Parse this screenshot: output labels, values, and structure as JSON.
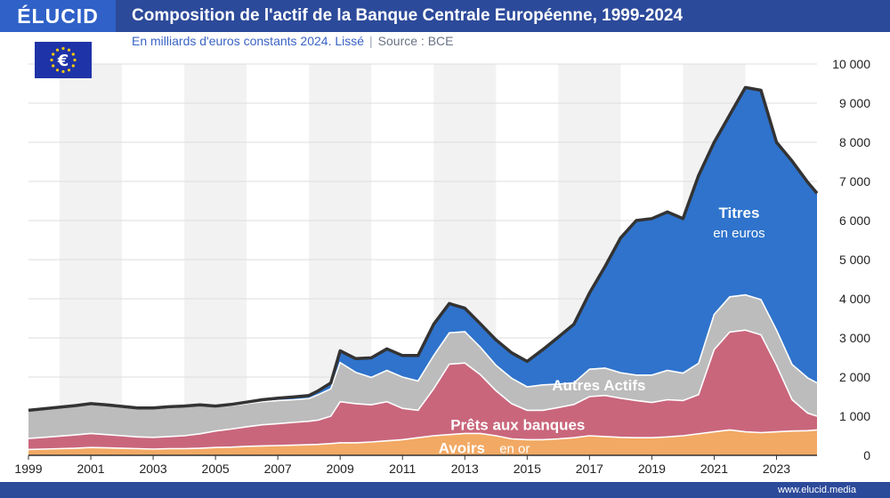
{
  "header": {
    "brand": "ÉLUCID",
    "title": "Composition de l'actif de la Banque Centrale Européenne, 1999-2024",
    "subtitle": "En milliards d'euros constants 2024. Lissé",
    "source": "Source : BCE",
    "site": "www.elucid.media"
  },
  "colors": {
    "header": "#2c4a9a",
    "brand": "#2f61c8",
    "or": "#f2a964",
    "prets": "#c9667c",
    "autres": "#bcbcbc",
    "titres": "#2f73cc",
    "total_line": "#333333",
    "flag": "#1f33a8",
    "flag_stars": "#ffcc00"
  },
  "icons": {
    "flag": "eu-flag-euro-icon"
  },
  "chart_data": {
    "type": "area",
    "stacked": true,
    "title": "Composition de l'actif de la Banque Centrale Européenne, 1999-2024",
    "subtitle": "En milliards d'euros constants 2024. Lissé",
    "xlabel": "",
    "ylabel": "",
    "xlim": [
      1999,
      2024.3
    ],
    "ylim": [
      0,
      10000
    ],
    "y_axis_side": "right",
    "x_ticks": [
      "1999",
      "2001",
      "2003",
      "2005",
      "2007",
      "2009",
      "2011",
      "2013",
      "2015",
      "2017",
      "2019",
      "2021",
      "2023"
    ],
    "y_ticks": [
      "0",
      "1 000",
      "2 000",
      "3 000",
      "4 000",
      "5 000",
      "6 000",
      "7 000",
      "8 000",
      "9 000",
      "10 000"
    ],
    "x": [
      1999,
      1999.5,
      2000,
      2000.5,
      2001,
      2001.5,
      2002,
      2002.5,
      2003,
      2003.5,
      2004,
      2004.5,
      2005,
      2005.5,
      2006,
      2006.5,
      2007,
      2007.5,
      2008,
      2008.3,
      2008.7,
      2009,
      2009.5,
      2010,
      2010.5,
      2011,
      2011.5,
      2012,
      2012.5,
      2013,
      2013.5,
      2014,
      2014.5,
      2015,
      2015.5,
      2016,
      2016.5,
      2017,
      2017.5,
      2018,
      2018.5,
      2019,
      2019.5,
      2020,
      2020.5,
      2021,
      2021.5,
      2022,
      2022.5,
      2023,
      2023.5,
      2024,
      2024.3
    ],
    "series": [
      {
        "name": "Avoirs en or",
        "values": [
          150,
          160,
          170,
          180,
          200,
          190,
          180,
          170,
          160,
          170,
          170,
          180,
          200,
          210,
          230,
          240,
          250,
          260,
          270,
          280,
          300,
          320,
          320,
          340,
          370,
          400,
          450,
          500,
          530,
          560,
          560,
          500,
          420,
          400,
          400,
          420,
          450,
          500,
          480,
          460,
          450,
          450,
          470,
          500,
          550,
          600,
          650,
          600,
          580,
          600,
          620,
          630,
          650
        ]
      },
      {
        "name": "Prêts aux banques",
        "values": [
          280,
          300,
          320,
          340,
          360,
          340,
          320,
          300,
          300,
          310,
          330,
          370,
          420,
          460,
          500,
          540,
          560,
          580,
          600,
          620,
          700,
          1050,
          1000,
          950,
          1000,
          800,
          700,
          1200,
          1800,
          1800,
          1500,
          1150,
          900,
          750,
          750,
          800,
          850,
          1000,
          1050,
          1000,
          950,
          900,
          950,
          900,
          1000,
          2100,
          2500,
          2600,
          2500,
          1700,
          800,
          450,
          350
        ]
      },
      {
        "name": "Autres Actifs",
        "values": [
          700,
          710,
          720,
          730,
          740,
          740,
          730,
          720,
          730,
          740,
          740,
          720,
          620,
          600,
          590,
          590,
          590,
          580,
          580,
          650,
          700,
          1000,
          800,
          700,
          800,
          800,
          750,
          850,
          800,
          800,
          700,
          650,
          650,
          600,
          650,
          600,
          550,
          700,
          700,
          650,
          650,
          700,
          750,
          700,
          800,
          900,
          900,
          900,
          900,
          900,
          900,
          900,
          850
        ]
      },
      {
        "name": "Titres en euros",
        "values": [
          20,
          20,
          20,
          20,
          20,
          20,
          20,
          20,
          20,
          20,
          20,
          20,
          20,
          30,
          40,
          50,
          60,
          70,
          80,
          100,
          150,
          300,
          350,
          500,
          550,
          550,
          650,
          800,
          750,
          600,
          600,
          650,
          650,
          650,
          900,
          1200,
          1500,
          1950,
          2600,
          3450,
          3950,
          4000,
          4050,
          3950,
          4800,
          4400,
          4650,
          5300,
          5350,
          4800,
          5200,
          5000,
          4850
        ]
      }
    ],
    "total_values": [
      1150,
      1190,
      1230,
      1270,
      1320,
      1290,
      1250,
      1210,
      1210,
      1240,
      1260,
      1290,
      1260,
      1300,
      1360,
      1420,
      1460,
      1490,
      1530,
      1650,
      1850,
      2670,
      2470,
      2490,
      2720,
      2550,
      2550,
      3350,
      3880,
      3760,
      3360,
      2950,
      2620,
      2400,
      2700,
      3020,
      3350,
      4150,
      4830,
      5560,
      6000,
      6050,
      6220,
      6050,
      7150,
      8000,
      8700,
      9400,
      9330,
      8000,
      7520,
      6980,
      6700
    ],
    "annotations": [
      {
        "text": "Titres",
        "x": 2021.8,
        "y": 6200
      },
      {
        "text": "en euros",
        "x": 2021.8,
        "y": 5700
      },
      {
        "text": "Autres Actifs",
        "x": 2017.3,
        "y": 1800
      },
      {
        "text": "Prêts aux banques",
        "x": 2014.7,
        "y": 780
      },
      {
        "text": "Avoirs",
        "x": 2012.9,
        "y": 190
      },
      {
        "text": "en or",
        "x": 2014.6,
        "y": 190
      }
    ],
    "grid": true,
    "legend": "none"
  }
}
